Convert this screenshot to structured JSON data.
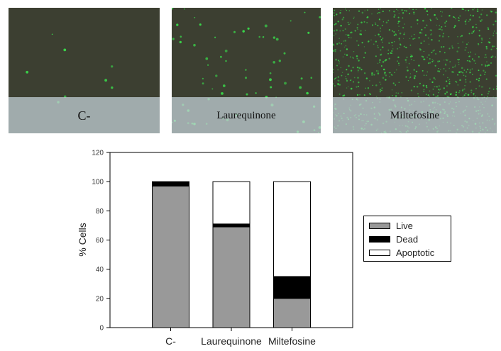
{
  "micrographs": [
    {
      "caption": "C-",
      "dot_count": 8
    },
    {
      "caption": "Laurequinone",
      "dot_count": 70
    },
    {
      "caption": "Miltefosine",
      "dot_count": 900
    }
  ],
  "chart_data": {
    "type": "bar",
    "stacked": true,
    "categories": [
      "C-",
      "Laurequinone",
      "Miltefosine"
    ],
    "series": [
      {
        "name": "Live",
        "color": "#999999",
        "values": [
          97,
          69,
          20
        ]
      },
      {
        "name": "Dead",
        "color": "#000000",
        "values": [
          3,
          2,
          15
        ]
      },
      {
        "name": "Apoptotic",
        "color": "#ffffff",
        "values": [
          0,
          29,
          65
        ]
      }
    ],
    "ylabel": "% Cells",
    "ylim": [
      0,
      120
    ],
    "yticks": [
      0,
      20,
      40,
      60,
      80,
      100,
      120
    ],
    "grid": false,
    "legend": "right"
  }
}
